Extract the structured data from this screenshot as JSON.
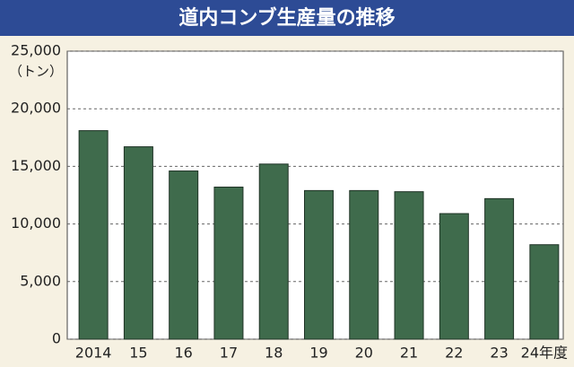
{
  "chart_data": {
    "type": "bar",
    "title": "道内コンブ生産量の推移",
    "y_label": "（トン）",
    "categories": [
      "2014",
      "15",
      "16",
      "17",
      "18",
      "19",
      "20",
      "21",
      "22",
      "23",
      "24年度"
    ],
    "values": [
      18100,
      16700,
      14600,
      13200,
      15200,
      12900,
      12900,
      12800,
      10900,
      12200,
      8200
    ],
    "color": "#3f6b4c",
    "ylim": [
      0,
      25000
    ],
    "yticks": [
      0,
      {
        "value": 5000,
        "label": "5,000"
      },
      {
        "value": 10000,
        "label": "10,000"
      },
      {
        "value": 15000,
        "label": "15,000"
      },
      {
        "value": 20000,
        "label": "20,000"
      },
      {
        "value": 25000,
        "label": "25,000"
      }
    ],
    "grid": true
  }
}
